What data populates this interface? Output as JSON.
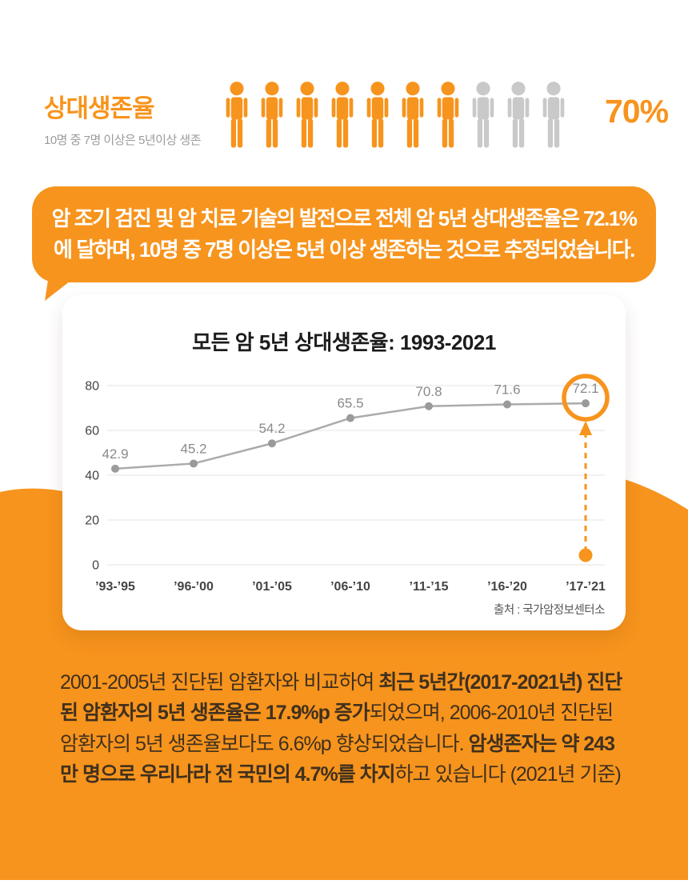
{
  "accent_color": "#F7941D",
  "header": {
    "title": "상대생존율",
    "subtitle": "10명 중 7명 이상은 5년이상 생존",
    "stat": "70%",
    "people": {
      "total": 10,
      "highlighted": 7,
      "active_color": "#F7941D",
      "inactive_color": "#C9C9C9"
    }
  },
  "speech_bubble": {
    "text": "암 조기 검진 및 암 치료 기술의 발전으로 전체 암 5년 상대생존율은 72.1%\n에 달하며, 10명 중 7명 이상은 5년 이상 생존하는 것으로 추정되었습니다."
  },
  "chart_data": {
    "type": "line",
    "title": "모든 암 5년 상대생존율: 1993-2021",
    "categories": [
      "’93-’95",
      "’96-’00",
      "’01-’05",
      "’06-’10",
      "’11-’15",
      "’16-’20",
      "’17-’21"
    ],
    "values": [
      42.9,
      45.2,
      54.2,
      65.5,
      70.8,
      71.6,
      72.1
    ],
    "ylim": [
      0,
      80
    ],
    "yticks": [
      0,
      20,
      40,
      60,
      80
    ],
    "grid": true,
    "legend": false,
    "highlight_index": 6,
    "line_color": "#ABABAB",
    "point_color": "#9A9A9A",
    "value_label_color": "#8A8A8A",
    "axis_label_color": "#444444",
    "grid_color": "#E3E3E3",
    "highlight_color": "#F7941D",
    "source": "출처 : 국가암정보센터소"
  },
  "footer": {
    "segments": [
      {
        "text": "2001-2005년 진단된 암환자와 비교하여 ",
        "bold": false
      },
      {
        "text": "최근 5년간(2017-2021년) 진단된 암환자의 5년 생존율은 17.9%p 증가",
        "bold": true
      },
      {
        "text": "되었으며, 2006-2010년 진단된 암환자의 5년 생존율보다도 6.6%p 향상되었습니다. ",
        "bold": false
      },
      {
        "text": "암생존자는 약 243만 명으로 우리나라 전 국민의 4.7%를 차지",
        "bold": true
      },
      {
        "text": "하고 있습니다 (2021년 기준)",
        "bold": false
      }
    ]
  }
}
